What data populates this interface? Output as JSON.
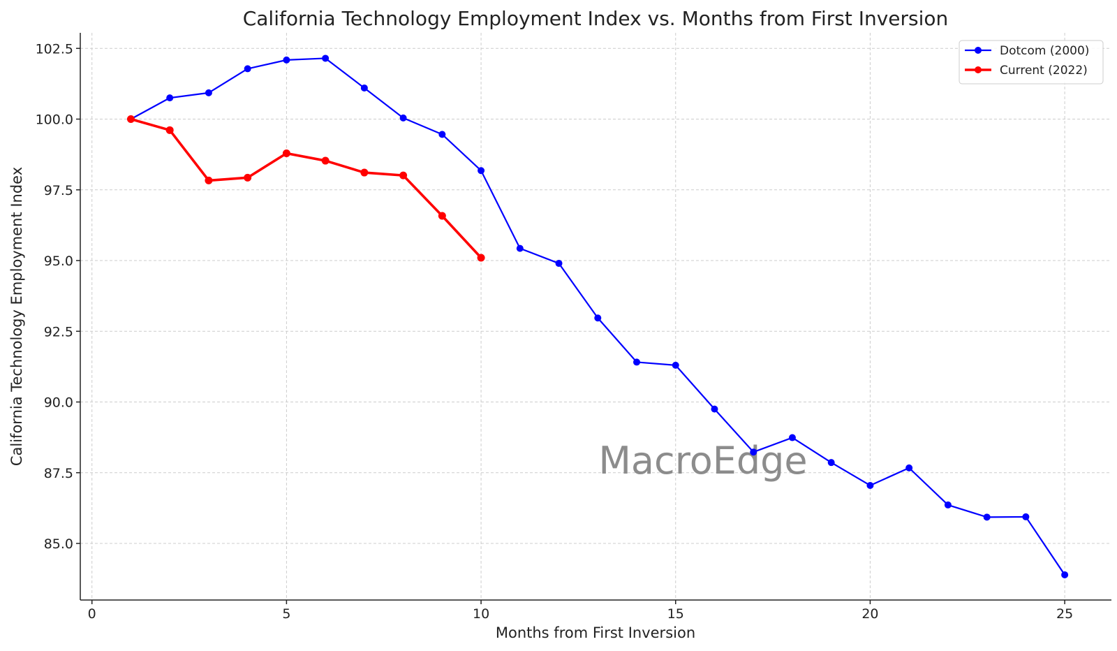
{
  "chart_data": {
    "type": "line",
    "title": "California Technology Employment Index vs. Months from First Inversion",
    "xlabel": "Months from First Inversion",
    "ylabel": "California Technology Employment Index",
    "xlim": [
      -0.3,
      26.2
    ],
    "ylim": [
      83.0,
      103.05
    ],
    "xticks": [
      0,
      5,
      10,
      15,
      20,
      25
    ],
    "xtick_labels": [
      "0",
      "5",
      "10",
      "15",
      "20",
      "25"
    ],
    "yticks": [
      85.0,
      87.5,
      90.0,
      92.5,
      95.0,
      97.5,
      100.0,
      102.5
    ],
    "ytick_labels": [
      "85.0",
      "87.5",
      "90.0",
      "92.5",
      "95.0",
      "97.5",
      "100.0",
      "102.5"
    ],
    "grid": true,
    "legend_position": "top-right",
    "watermark": "MacroEdge",
    "series": [
      {
        "name": "Dotcom (2000)",
        "color": "#0000ff",
        "x": [
          1,
          2,
          3,
          4,
          5,
          6,
          7,
          8,
          9,
          10,
          11,
          12,
          13,
          14,
          15,
          16,
          17,
          18,
          19,
          20,
          21,
          22,
          23,
          24,
          25
        ],
        "values": [
          100.0,
          100.75,
          100.93,
          101.78,
          102.09,
          102.15,
          101.1,
          100.04,
          99.46,
          98.18,
          95.43,
          94.9,
          92.97,
          91.41,
          91.3,
          89.75,
          88.23,
          88.74,
          87.86,
          87.05,
          87.67,
          86.36,
          85.93,
          85.94,
          83.89
        ]
      },
      {
        "name": "Current (2022)",
        "color": "#ff0000",
        "x": [
          1,
          2,
          3,
          4,
          5,
          6,
          7,
          8,
          9,
          10
        ],
        "values": [
          100.0,
          99.61,
          97.83,
          97.93,
          98.79,
          98.53,
          98.11,
          98.01,
          96.58,
          95.1
        ]
      }
    ]
  }
}
